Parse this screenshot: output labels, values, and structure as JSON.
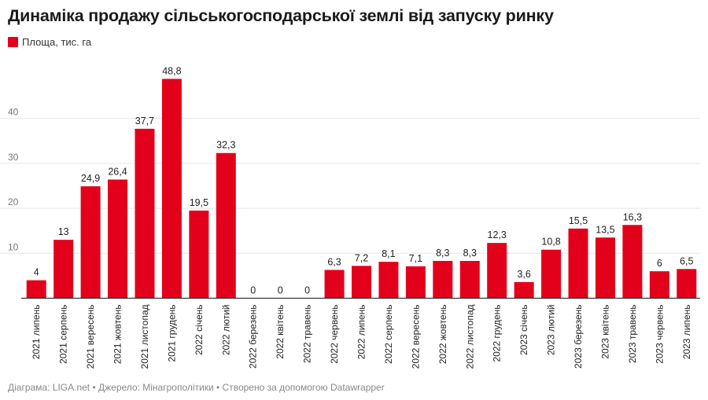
{
  "title": "Динаміка продажу сільськогосподарської землі від запуску ринку",
  "footer": "Діаграма: LIGA.net • Джерело: Мінагрополітики • Створено за допомогою Datawrapper",
  "colors": {
    "bar": "#e3001b",
    "grid": "#e6e6e6",
    "axis": "#333333",
    "tick_label": "#777777"
  },
  "chart_data": {
    "type": "bar",
    "title": "Динаміка продажу сільськогосподарської землі від запуску ринку",
    "xlabel": "",
    "ylabel": "",
    "ylim": [
      0,
      50
    ],
    "yticks": [
      10,
      20,
      30,
      40
    ],
    "grid": true,
    "legend_position": "top-left",
    "categories": [
      "2021 липень",
      "2021 серпень",
      "2021 вересень",
      "2021 жовтень",
      "2021 листопад",
      "2021 грудень",
      "2022 січень",
      "2022 лютий",
      "2022 березень",
      "2022 квітень",
      "2022 травень",
      "2022 червень",
      "2022 липень",
      "2022 серпень",
      "2022 вересень",
      "2022 жовтень",
      "2022 листопад",
      "2022 грудень",
      "2023 січень",
      "2023 лютий",
      "2023 березень",
      "2023 квітень",
      "2023 травень",
      "2023 червень",
      "2023 липень"
    ],
    "series": [
      {
        "name": "Площа, тис. га",
        "values": [
          4,
          13,
          24.9,
          26.4,
          37.7,
          48.8,
          19.5,
          32.3,
          0,
          0,
          0,
          6.3,
          7.2,
          8.1,
          7.1,
          8.3,
          8.3,
          12.3,
          3.6,
          10.8,
          15.5,
          13.5,
          16.3,
          6,
          6.5
        ],
        "labels": [
          "4",
          "13",
          "24,9",
          "26,4",
          "37,7",
          "48,8",
          "19,5",
          "32,3",
          "0",
          "0",
          "0",
          "6,3",
          "7,2",
          "8,1",
          "7,1",
          "8,3",
          "8,3",
          "12,3",
          "3,6",
          "10,8",
          "15,5",
          "13,5",
          "16,3",
          "6",
          "6,5"
        ]
      }
    ]
  }
}
